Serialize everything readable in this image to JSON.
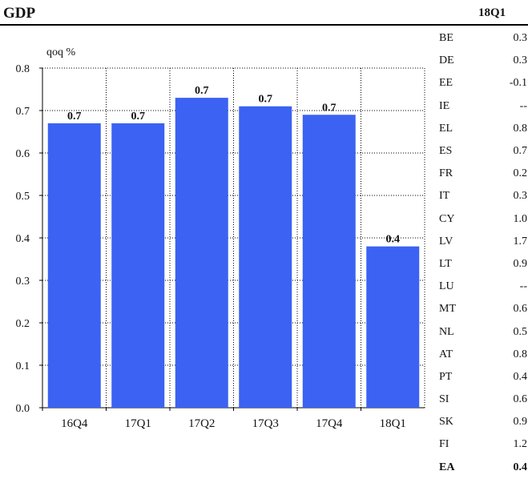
{
  "title": "GDP",
  "period_header": "18Q1",
  "chart_data": {
    "type": "bar",
    "unit_label": "qoq %",
    "categories": [
      "16Q4",
      "17Q1",
      "17Q2",
      "17Q3",
      "17Q4",
      "18Q1"
    ],
    "values": [
      0.67,
      0.67,
      0.73,
      0.71,
      0.69,
      0.38
    ],
    "data_labels": [
      "0.7",
      "0.7",
      "0.7",
      "0.7",
      "0.7",
      "0.4"
    ],
    "ylim": [
      0,
      0.8
    ],
    "yticks": [
      "0.0",
      "0.1",
      "0.2",
      "0.3",
      "0.4",
      "0.5",
      "0.6",
      "0.7",
      "0.8"
    ],
    "bar_color": "#3b62f2",
    "grid": "dotted"
  },
  "country_table": [
    {
      "code": "BE",
      "value": "0.3"
    },
    {
      "code": "DE",
      "value": "0.3"
    },
    {
      "code": "EE",
      "value": "-0.1"
    },
    {
      "code": "IE",
      "value": "--"
    },
    {
      "code": "EL",
      "value": "0.8"
    },
    {
      "code": "ES",
      "value": "0.7"
    },
    {
      "code": "FR",
      "value": "0.2"
    },
    {
      "code": "IT",
      "value": "0.3"
    },
    {
      "code": "CY",
      "value": "1.0"
    },
    {
      "code": "LV",
      "value": "1.7"
    },
    {
      "code": "LT",
      "value": "0.9"
    },
    {
      "code": "LU",
      "value": "--"
    },
    {
      "code": "MT",
      "value": "0.6"
    },
    {
      "code": "NL",
      "value": "0.5"
    },
    {
      "code": "AT",
      "value": "0.8"
    },
    {
      "code": "PT",
      "value": "0.4"
    },
    {
      "code": "SI",
      "value": "0.6"
    },
    {
      "code": "SK",
      "value": "0.9"
    },
    {
      "code": "FI",
      "value": "1.2"
    },
    {
      "code": "EA",
      "value": "0.4",
      "bold": true
    }
  ]
}
